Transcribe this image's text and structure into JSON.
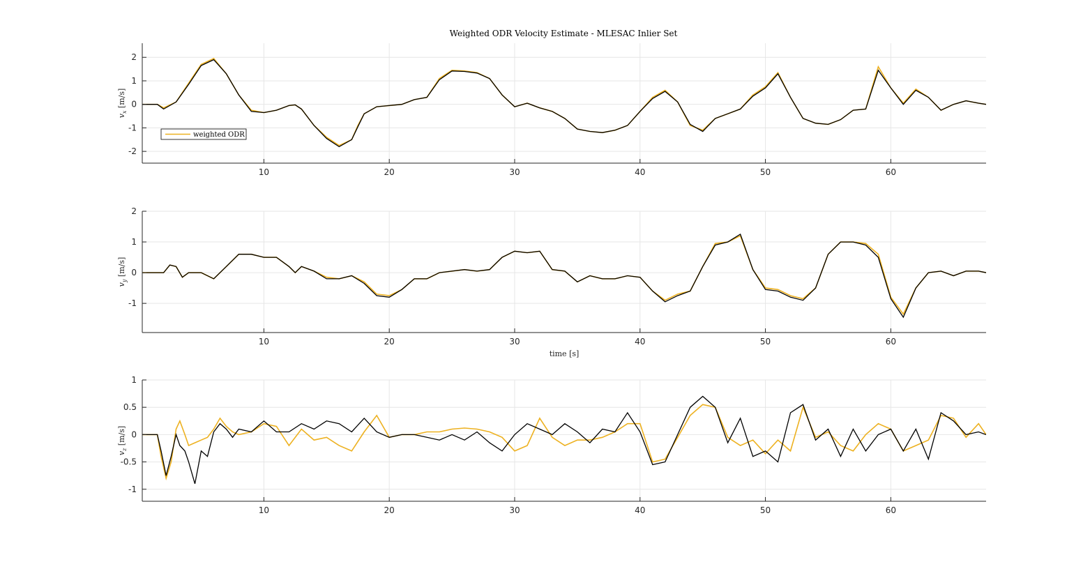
{
  "figure": {
    "title": "Weighted ODR Velocity Estimate - MLESAC Inlier Set"
  },
  "colors": {
    "estimate": "#EDB120",
    "reference": "#000000",
    "grid": "#e6e6e6",
    "axis": "#262626"
  },
  "chart_data": [
    {
      "type": "line",
      "title": "Weighted ODR Velocity Estimate - MLESAC Inlier Set",
      "ylabel": "v_x [m/s]",
      "xlabel": "",
      "xlim": [
        0.3,
        67.6
      ],
      "ylim": [
        -2.5,
        2.6
      ],
      "xticks": [
        10,
        20,
        30,
        40,
        50,
        60
      ],
      "yticks": [
        -2,
        -1,
        0,
        1,
        2
      ],
      "grid": true,
      "legend": {
        "entries": [
          "weighted ODR"
        ],
        "location": "lower-left"
      },
      "series": [
        {
          "name": "weighted ODR",
          "color": "#EDB120",
          "x": [
            0.3,
            1.5,
            2,
            3,
            4,
            5,
            6,
            7,
            8,
            9,
            10,
            11,
            12,
            12.5,
            13,
            14,
            15,
            16,
            17,
            17.5,
            18,
            19,
            20,
            21,
            22,
            23,
            24,
            25,
            26,
            27,
            28,
            29,
            30,
            31,
            32,
            33,
            34,
            35,
            36,
            37,
            38,
            39,
            40,
            41,
            42,
            43,
            44,
            45,
            46,
            47,
            48,
            49,
            50,
            51,
            52,
            53,
            54,
            55,
            56,
            57,
            58,
            59,
            60,
            61,
            62,
            63,
            64,
            65,
            66,
            67,
            67.6
          ],
          "y": [
            0,
            0,
            -0.15,
            0.1,
            0.9,
            1.7,
            1.95,
            1.3,
            0.4,
            -0.25,
            -0.35,
            -0.25,
            -0.05,
            -0.02,
            -0.2,
            -0.9,
            -1.4,
            -1.75,
            -1.5,
            -0.9,
            -0.4,
            -0.1,
            -0.05,
            0,
            0.2,
            0.3,
            1.1,
            1.45,
            1.42,
            1.35,
            1.1,
            0.4,
            -0.1,
            0.05,
            -0.15,
            -0.3,
            -0.6,
            -1.05,
            -1.15,
            -1.2,
            -1.1,
            -0.9,
            -0.3,
            0.3,
            0.6,
            0.1,
            -0.9,
            -1.1,
            -0.6,
            -0.4,
            -0.2,
            0.4,
            0.75,
            1.35,
            0.3,
            -0.6,
            -0.8,
            -0.85,
            -0.65,
            -0.25,
            -0.2,
            1.6,
            0.7,
            0.05,
            0.65,
            0.3,
            -0.25,
            0,
            0.15,
            0.05,
            0
          ]
        },
        {
          "name": "",
          "color": "#000000",
          "x": [
            0.3,
            1.5,
            2,
            3,
            4,
            5,
            6,
            7,
            8,
            9,
            10,
            11,
            12,
            12.5,
            13,
            14,
            15,
            16,
            17,
            17.5,
            18,
            19,
            20,
            21,
            22,
            23,
            24,
            25,
            26,
            27,
            28,
            29,
            30,
            31,
            32,
            33,
            34,
            35,
            36,
            37,
            38,
            39,
            40,
            41,
            42,
            43,
            44,
            45,
            46,
            47,
            48,
            49,
            50,
            51,
            52,
            53,
            54,
            55,
            56,
            57,
            58,
            59,
            60,
            61,
            62,
            63,
            64,
            65,
            66,
            67,
            67.6
          ],
          "y": [
            0,
            0,
            -0.2,
            0.1,
            0.85,
            1.65,
            1.9,
            1.3,
            0.4,
            -0.3,
            -0.35,
            -0.25,
            -0.05,
            -0.02,
            -0.2,
            -0.9,
            -1.45,
            -1.8,
            -1.5,
            -0.95,
            -0.4,
            -0.1,
            -0.05,
            0,
            0.2,
            0.3,
            1.05,
            1.42,
            1.4,
            1.33,
            1.1,
            0.4,
            -0.1,
            0.05,
            -0.15,
            -0.3,
            -0.6,
            -1.05,
            -1.15,
            -1.2,
            -1.1,
            -0.9,
            -0.3,
            0.25,
            0.55,
            0.1,
            -0.85,
            -1.15,
            -0.6,
            -0.4,
            -0.2,
            0.35,
            0.7,
            1.3,
            0.3,
            -0.6,
            -0.8,
            -0.85,
            -0.65,
            -0.25,
            -0.2,
            1.45,
            0.7,
            0,
            0.6,
            0.3,
            -0.25,
            0,
            0.15,
            0.05,
            0
          ]
        }
      ]
    },
    {
      "type": "line",
      "ylabel": "v_y [m/s]",
      "xlabel": "time [s]",
      "xlim": [
        0.3,
        67.6
      ],
      "ylim": [
        -1.95,
        2
      ],
      "xticks": [
        10,
        20,
        30,
        40,
        50,
        60
      ],
      "yticks": [
        -1,
        0,
        1,
        2
      ],
      "grid": true,
      "series": [
        {
          "name": "weighted ODR",
          "color": "#EDB120",
          "x": [
            0.3,
            1.5,
            2,
            2.5,
            3,
            3.5,
            4,
            5,
            6,
            7,
            8,
            9,
            10,
            11,
            12,
            12.5,
            13,
            14,
            15,
            16,
            17,
            18,
            19,
            20,
            21,
            22,
            23,
            24,
            25,
            26,
            27,
            28,
            29,
            30,
            31,
            32,
            33,
            34,
            35,
            36,
            37,
            38,
            39,
            40,
            41,
            42,
            43,
            44,
            45,
            46,
            47,
            48,
            49,
            50,
            51,
            52,
            53,
            54,
            55,
            56,
            57,
            58,
            59,
            60,
            61,
            62,
            63,
            64,
            65,
            66,
            67,
            67.6
          ],
          "y": [
            0,
            0,
            0,
            0.25,
            0.2,
            -0.15,
            0,
            0,
            -0.2,
            0.2,
            0.6,
            0.6,
            0.5,
            0.5,
            0.2,
            0,
            0.2,
            0.05,
            -0.15,
            -0.2,
            -0.1,
            -0.3,
            -0.7,
            -0.75,
            -0.55,
            -0.2,
            -0.2,
            0,
            0.05,
            0.1,
            0.05,
            0.1,
            0.5,
            0.7,
            0.65,
            0.7,
            0.1,
            0.05,
            -0.3,
            -0.1,
            -0.2,
            -0.2,
            -0.1,
            -0.15,
            -0.6,
            -0.9,
            -0.7,
            -0.6,
            0.2,
            0.95,
            1.0,
            1.2,
            0.1,
            -0.5,
            -0.55,
            -0.75,
            -0.85,
            -0.5,
            0.6,
            1.0,
            1.0,
            0.95,
            0.6,
            -0.8,
            -1.35,
            -0.5,
            0,
            0.05,
            -0.1,
            0.05,
            0.05,
            0
          ]
        },
        {
          "name": "",
          "color": "#000000",
          "x": [
            0.3,
            1.5,
            2,
            2.5,
            3,
            3.5,
            4,
            5,
            6,
            7,
            8,
            9,
            10,
            11,
            12,
            12.5,
            13,
            14,
            15,
            16,
            17,
            18,
            19,
            20,
            21,
            22,
            23,
            24,
            25,
            26,
            27,
            28,
            29,
            30,
            31,
            32,
            33,
            34,
            35,
            36,
            37,
            38,
            39,
            40,
            41,
            42,
            43,
            44,
            45,
            46,
            47,
            48,
            49,
            50,
            51,
            52,
            53,
            54,
            55,
            56,
            57,
            58,
            59,
            60,
            61,
            62,
            63,
            64,
            65,
            66,
            67,
            67.6
          ],
          "y": [
            0,
            0,
            0,
            0.25,
            0.2,
            -0.15,
            0,
            0,
            -0.2,
            0.2,
            0.6,
            0.6,
            0.5,
            0.5,
            0.2,
            0,
            0.2,
            0.05,
            -0.2,
            -0.2,
            -0.1,
            -0.35,
            -0.75,
            -0.8,
            -0.55,
            -0.2,
            -0.2,
            0,
            0.05,
            0.1,
            0.05,
            0.1,
            0.5,
            0.7,
            0.65,
            0.7,
            0.1,
            0.05,
            -0.3,
            -0.1,
            -0.2,
            -0.2,
            -0.1,
            -0.15,
            -0.6,
            -0.95,
            -0.75,
            -0.6,
            0.2,
            0.9,
            1.0,
            1.25,
            0.1,
            -0.55,
            -0.6,
            -0.8,
            -0.9,
            -0.5,
            0.6,
            1.0,
            1.0,
            0.9,
            0.5,
            -0.85,
            -1.45,
            -0.5,
            0,
            0.05,
            -0.1,
            0.05,
            0.05,
            0
          ]
        }
      ]
    },
    {
      "type": "line",
      "ylabel": "v_z [m/s]",
      "xlabel": "",
      "xlim": [
        0.3,
        67.6
      ],
      "ylim": [
        -1.22,
        1
      ],
      "xticks": [
        10,
        20,
        30,
        40,
        50,
        60
      ],
      "yticks": [
        -1,
        -0.5,
        0,
        0.5,
        1
      ],
      "grid": true,
      "series": [
        {
          "name": "weighted ODR",
          "color": "#EDB120",
          "x": [
            0.3,
            1.5,
            1.8,
            2.2,
            2.6,
            3,
            3.3,
            3.7,
            4,
            4.5,
            5,
            5.5,
            6,
            6.5,
            7,
            7.5,
            8,
            9,
            10,
            11,
            12,
            13,
            14,
            15,
            16,
            17,
            18,
            19,
            20,
            21,
            22,
            23,
            24,
            25,
            26,
            27,
            28,
            29,
            30,
            31,
            32,
            33,
            34,
            35,
            36,
            37,
            38,
            39,
            40,
            41,
            42,
            43,
            44,
            45,
            46,
            47,
            48,
            49,
            50,
            51,
            52,
            53,
            54,
            55,
            56,
            57,
            58,
            59,
            60,
            61,
            62,
            63,
            64,
            65,
            66,
            67,
            67.6
          ],
          "y": [
            0,
            0,
            -0.4,
            -0.8,
            -0.5,
            0.1,
            0.25,
            0,
            -0.2,
            -0.15,
            -0.1,
            -0.05,
            0.1,
            0.3,
            0.15,
            0.05,
            0,
            0.05,
            0.2,
            0.15,
            -0.2,
            0.1,
            -0.1,
            -0.05,
            -0.2,
            -0.3,
            0.05,
            0.35,
            -0.05,
            0,
            0,
            0.05,
            0.05,
            0.1,
            0.12,
            0.1,
            0.05,
            -0.05,
            -0.3,
            -0.2,
            0.3,
            -0.05,
            -0.2,
            -0.1,
            -0.1,
            -0.05,
            0.05,
            0.2,
            0.2,
            -0.5,
            -0.45,
            -0.05,
            0.35,
            0.55,
            0.5,
            -0.05,
            -0.2,
            -0.1,
            -0.35,
            -0.1,
            -0.3,
            0.5,
            -0.05,
            0.05,
            -0.2,
            -0.3,
            0,
            0.2,
            0.1,
            -0.3,
            -0.2,
            -0.1,
            0.35,
            0.3,
            -0.05,
            0.2,
            0
          ]
        },
        {
          "name": "",
          "color": "#000000",
          "x": [
            0.3,
            1.5,
            1.8,
            2.2,
            2.6,
            3,
            3.3,
            3.7,
            4,
            4.5,
            5,
            5.5,
            6,
            6.5,
            7,
            7.5,
            8,
            9,
            10,
            11,
            12,
            13,
            14,
            15,
            16,
            17,
            18,
            19,
            20,
            21,
            22,
            23,
            24,
            25,
            26,
            27,
            28,
            29,
            30,
            31,
            32,
            33,
            34,
            35,
            36,
            37,
            38,
            39,
            40,
            41,
            42,
            43,
            44,
            45,
            46,
            47,
            48,
            49,
            50,
            51,
            52,
            53,
            54,
            55,
            56,
            57,
            58,
            59,
            60,
            61,
            62,
            63,
            64,
            65,
            66,
            67,
            67.6
          ],
          "y": [
            0,
            0,
            -0.3,
            -0.75,
            -0.4,
            0,
            -0.2,
            -0.3,
            -0.5,
            -0.9,
            -0.3,
            -0.4,
            0.05,
            0.2,
            0.1,
            -0.05,
            0.1,
            0.05,
            0.25,
            0.05,
            0.05,
            0.2,
            0.1,
            0.25,
            0.2,
            0.05,
            0.3,
            0.05,
            -0.05,
            0,
            0,
            -0.05,
            -0.1,
            0,
            -0.1,
            0.05,
            -0.15,
            -0.3,
            0,
            0.2,
            0.1,
            0,
            0.2,
            0.05,
            -0.15,
            0.1,
            0.05,
            0.4,
            0.05,
            -0.55,
            -0.5,
            0,
            0.5,
            0.7,
            0.5,
            -0.15,
            0.3,
            -0.4,
            -0.3,
            -0.5,
            0.4,
            0.55,
            -0.1,
            0.1,
            -0.4,
            0.1,
            -0.3,
            0,
            0.1,
            -0.3,
            0.1,
            -0.45,
            0.4,
            0.25,
            0,
            0.05,
            0
          ]
        }
      ]
    }
  ]
}
